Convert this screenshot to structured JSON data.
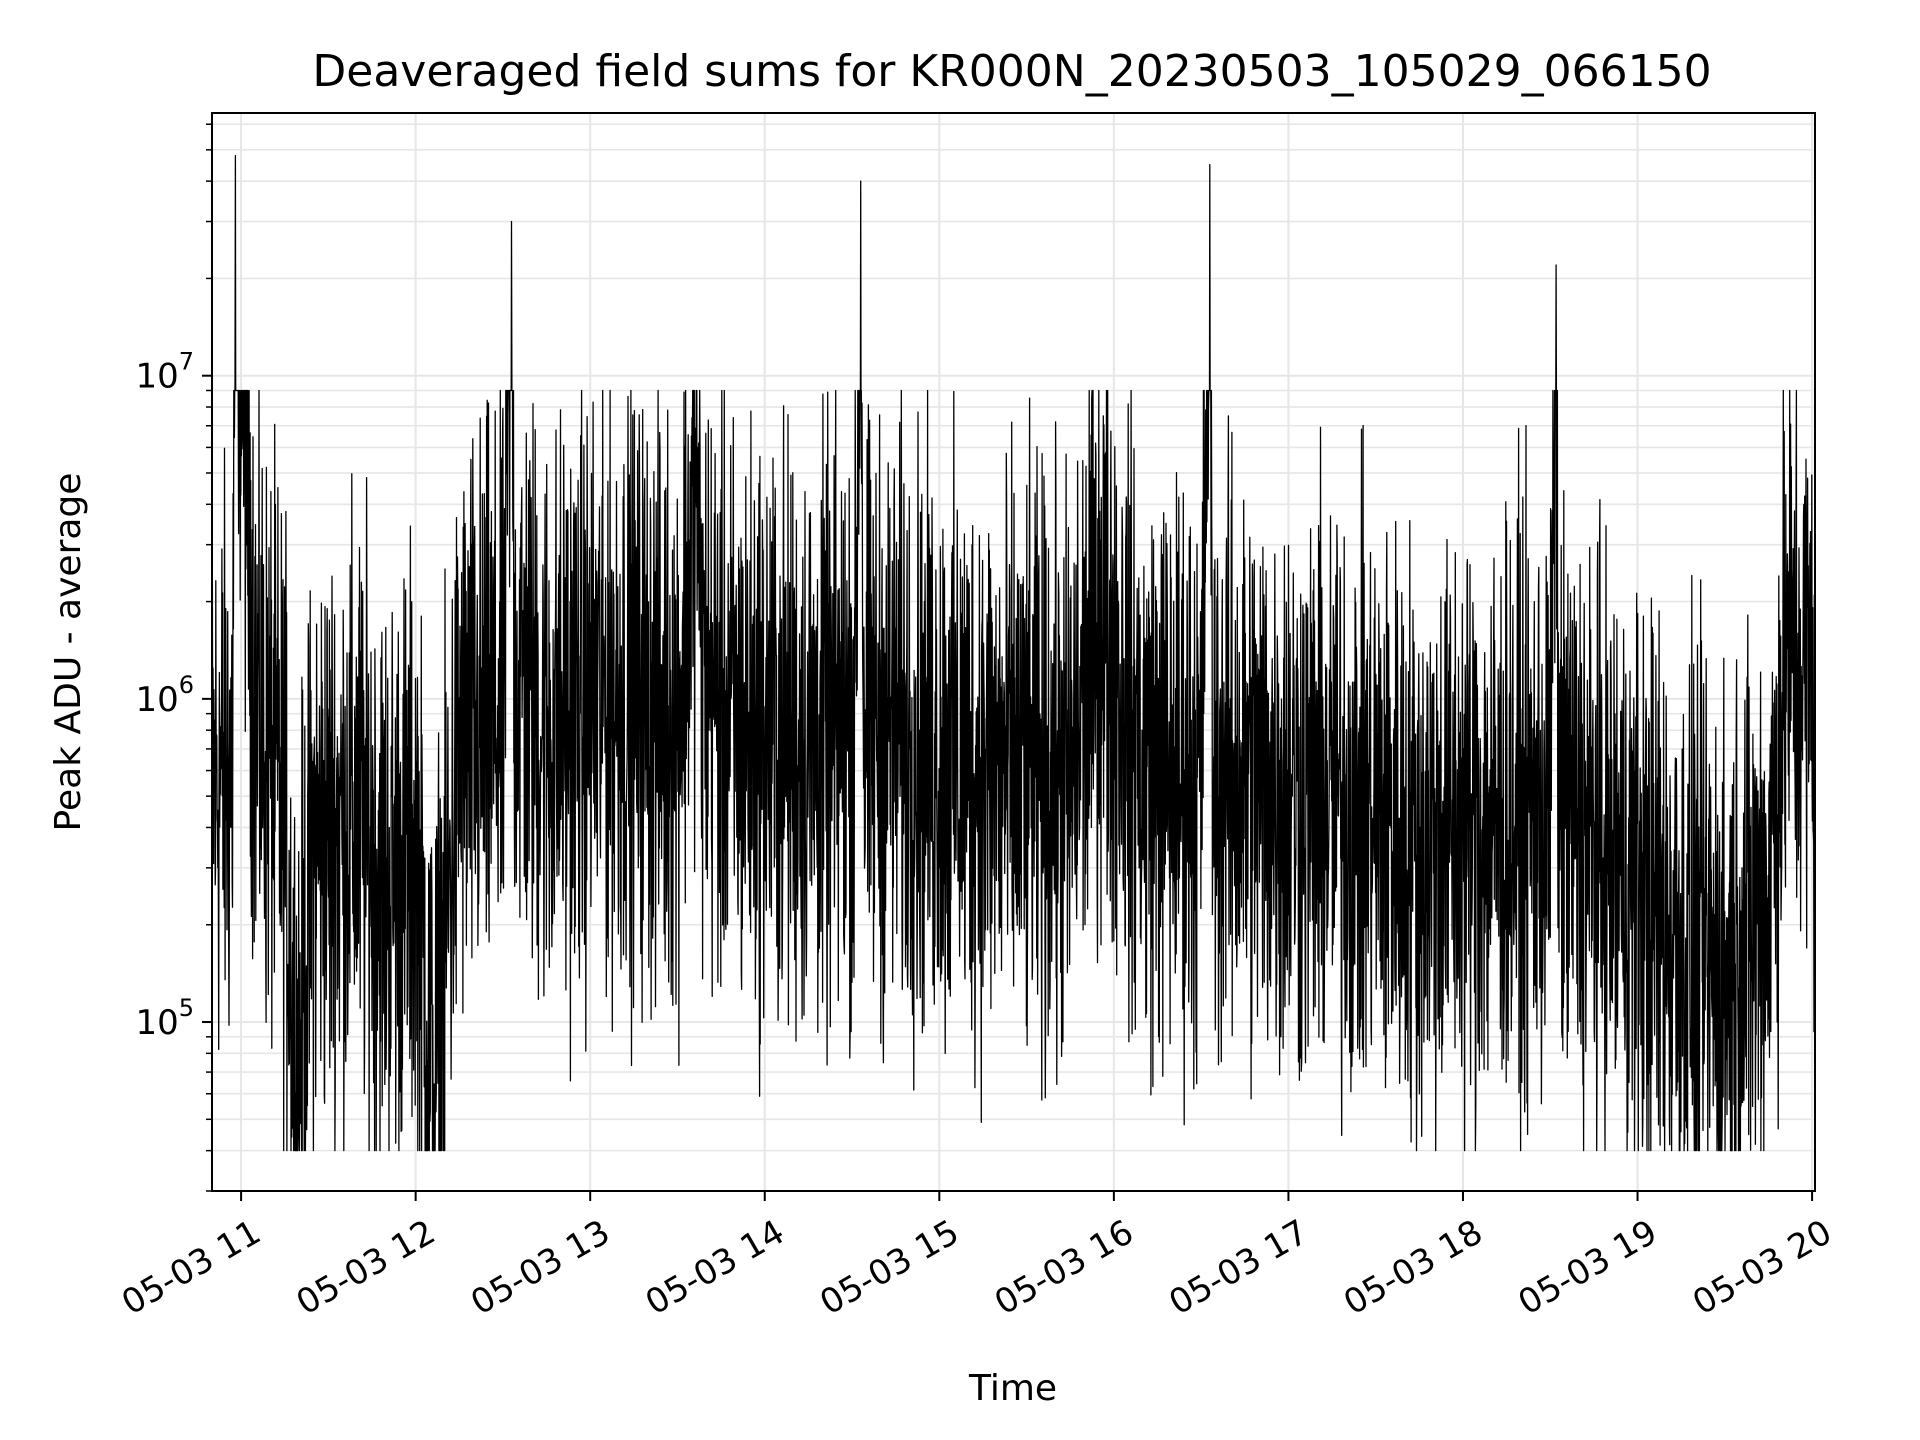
{
  "chart_data": {
    "type": "line",
    "title": "Deaveraged field sums for KR000N_20230503_105029_066150",
    "xlabel": "Time",
    "ylabel": "Peak ADU - average",
    "yscale": "log",
    "ylim": [
      30000,
      65000000
    ],
    "xlim": [
      "2023-05-03 10:50",
      "2023-05-03 20:01"
    ],
    "grid": true,
    "grid_minor": true,
    "line_color": "#000000",
    "grid_color": "#e6e6e6",
    "x_ticks": [
      {
        "value": "2023-05-03 11:00",
        "label": "05-03 11"
      },
      {
        "value": "2023-05-03 12:00",
        "label": "05-03 12"
      },
      {
        "value": "2023-05-03 13:00",
        "label": "05-03 13"
      },
      {
        "value": "2023-05-03 14:00",
        "label": "05-03 14"
      },
      {
        "value": "2023-05-03 15:00",
        "label": "05-03 15"
      },
      {
        "value": "2023-05-03 16:00",
        "label": "05-03 16"
      },
      {
        "value": "2023-05-03 17:00",
        "label": "05-03 17"
      },
      {
        "value": "2023-05-03 18:00",
        "label": "05-03 18"
      },
      {
        "value": "2023-05-03 19:00",
        "label": "05-03 19"
      },
      {
        "value": "2023-05-03 20:00",
        "label": "05-03 20"
      }
    ],
    "y_ticks": [
      {
        "value": 100000,
        "base": "10",
        "exp": "5"
      },
      {
        "value": 1000000,
        "base": "10",
        "exp": "6"
      },
      {
        "value": 10000000,
        "base": "10",
        "exp": "7"
      }
    ],
    "series": [
      {
        "x": [
          "2023-05-03 10:50",
          "2023-05-03 10:57",
          "2023-05-03 10:58",
          "2023-05-03 11:05",
          "2023-05-03 11:15",
          "2023-05-03 11:19",
          "2023-05-03 11:25",
          "2023-05-03 11:40",
          "2023-05-03 11:50",
          "2023-05-03 12:00",
          "2023-05-03 12:06",
          "2023-05-03 12:15",
          "2023-05-03 12:30",
          "2023-05-03 12:33",
          "2023-05-03 12:34",
          "2023-05-03 12:45",
          "2023-05-03 13:00",
          "2023-05-03 13:10",
          "2023-05-03 13:20",
          "2023-05-03 13:30",
          "2023-05-03 13:37",
          "2023-05-03 13:38",
          "2023-05-03 13:50",
          "2023-05-03 14:00",
          "2023-05-03 14:20",
          "2023-05-03 14:31",
          "2023-05-03 14:33",
          "2023-05-03 14:34",
          "2023-05-03 14:45",
          "2023-05-03 15:00",
          "2023-05-03 15:30",
          "2023-05-03 15:45",
          "2023-05-03 15:55",
          "2023-05-03 16:10",
          "2023-05-03 16:30",
          "2023-05-03 16:33",
          "2023-05-03 16:34",
          "2023-05-03 17:00",
          "2023-05-03 17:30",
          "2023-05-03 17:45",
          "2023-05-03 18:00",
          "2023-05-03 18:30",
          "2023-05-03 18:32",
          "2023-05-03 18:33",
          "2023-05-03 18:45",
          "2023-05-03 19:00",
          "2023-05-03 19:15",
          "2023-05-03 19:30",
          "2023-05-03 19:45",
          "2023-05-03 19:51",
          "2023-05-03 20:00",
          "2023-05-03 20:01"
        ],
        "y": [
          600000,
          700000,
          48000000,
          1100000,
          500000,
          70000,
          400000,
          500000,
          300000,
          400000,
          60000,
          800000,
          1000000,
          30000000,
          1500000,
          900000,
          1100000,
          1200000,
          1100000,
          1000000,
          6000000,
          1400000,
          900000,
          900000,
          800000,
          1000000,
          40000000,
          900000,
          900000,
          750000,
          650000,
          600000,
          2200000,
          700000,
          650000,
          45000000,
          700000,
          600000,
          500000,
          400000,
          450000,
          500000,
          22000000,
          500000,
          400000,
          300000,
          200000,
          150000,
          300000,
          1500000,
          1300000,
          900000
        ]
      }
    ]
  }
}
